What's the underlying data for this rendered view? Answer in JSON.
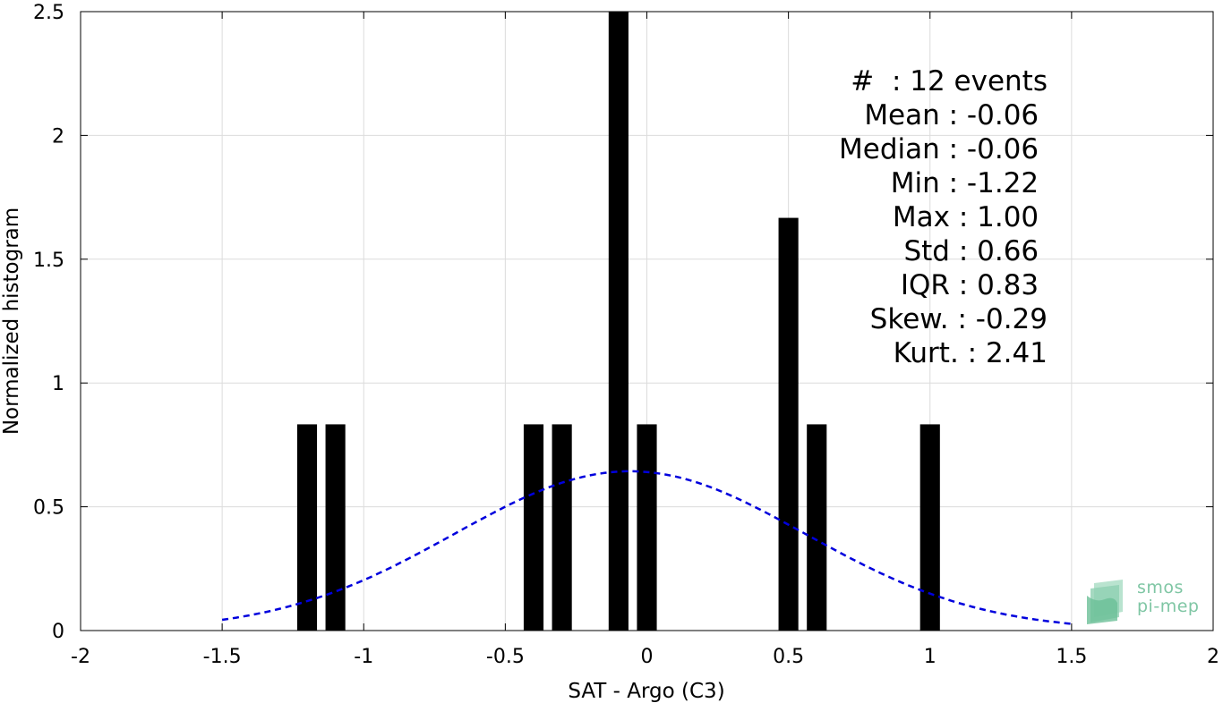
{
  "chart_data": {
    "type": "bar",
    "title": "",
    "xlabel": "SAT - Argo (C3)",
    "ylabel": "Normalized histogram",
    "xlim": [
      -2,
      2
    ],
    "ylim": [
      0,
      2.5
    ],
    "xticks": [
      -2,
      -1.5,
      -1,
      -0.5,
      0,
      0.5,
      1,
      1.5,
      2
    ],
    "xtick_labels": [
      "-2",
      "-1.5",
      "-1",
      "-0.5",
      "0",
      "0.5",
      "1",
      "1.5",
      "2"
    ],
    "yticks": [
      0,
      0.5,
      1,
      1.5,
      2,
      2.5
    ],
    "ytick_labels": [
      "0",
      "0.5",
      "1",
      "1.5",
      "2",
      "2.5"
    ],
    "grid": true,
    "bar_width": 0.07,
    "bars": [
      {
        "x": -1.2,
        "value": 0.833
      },
      {
        "x": -1.1,
        "value": 0.833
      },
      {
        "x": -0.4,
        "value": 0.833
      },
      {
        "x": -0.3,
        "value": 0.833
      },
      {
        "x": -0.1,
        "value": 2.5
      },
      {
        "x": 0.0,
        "value": 0.833
      },
      {
        "x": 0.5,
        "value": 1.667
      },
      {
        "x": 0.6,
        "value": 0.833
      },
      {
        "x": 1.0,
        "value": 0.833
      }
    ],
    "fit_curve": {
      "type": "normal",
      "mean": -0.06,
      "std": 0.62,
      "x_range": [
        -1.5,
        1.5
      ],
      "color": "#0000dd",
      "style": "dashed"
    },
    "bar_color": "#000000"
  },
  "stats": {
    "lines": [
      "#  : 12 events",
      "Mean : -0.06 ",
      "Median : -0.06 ",
      "Min : -1.22 ",
      "Max : 1.00 ",
      "Std : 0.66 ",
      "IQR : 0.83 ",
      "Skew. : -0.29",
      "Kurt. : 2.41"
    ]
  },
  "logo": {
    "line1": "smos",
    "line2": "pi-mep"
  }
}
